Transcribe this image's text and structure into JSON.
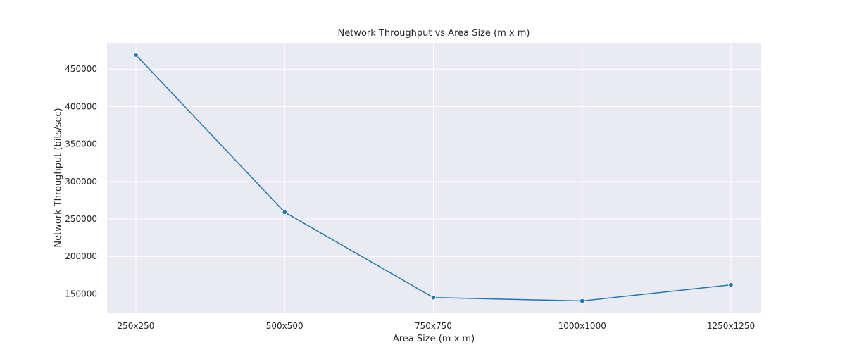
{
  "chart_data": {
    "type": "line",
    "title": "Network Throughput vs Area Size (m x m)",
    "xlabel": "Area Size (m x m)",
    "ylabel": "Network Throughput (bits/sec)",
    "categories": [
      "250x250",
      "500x500",
      "750x750",
      "1000x1000",
      "1250x1250"
    ],
    "series": [
      {
        "values": [
          469000,
          259000,
          145000,
          140500,
          162000
        ]
      }
    ],
    "ylim": [
      125000,
      485000
    ],
    "yticks": [
      150000,
      200000,
      250000,
      300000,
      350000,
      400000,
      450000
    ],
    "grid": true,
    "legend": "none",
    "colors": {
      "background": "#eaeaf2",
      "grid": "#ffffff",
      "line": "#1f77b4",
      "marker_edge": "#ffffff",
      "text": "#262626"
    }
  }
}
